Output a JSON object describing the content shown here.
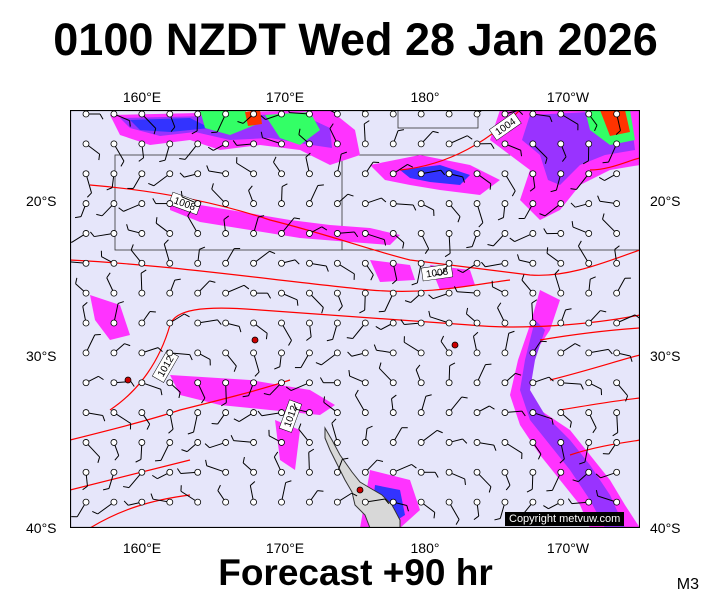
{
  "title": "0100 NZDT Wed 28 Jan 2026",
  "footer": "Forecast +90 hr",
  "model": "M3",
  "copyright": "Copyright metvuw.com",
  "lon_labels": [
    "160°E",
    "170°E",
    "180°",
    "170°W"
  ],
  "lat_labels": [
    "20°S",
    "30°S",
    "40°S"
  ],
  "isobar_labels": [
    "1004",
    "1008",
    "1008",
    "1012",
    "1012"
  ],
  "colors": {
    "background": "#e6e6fa",
    "isobar": "#ff0000",
    "rain_light": "#ff33ff",
    "rain_medium": "#9933ff",
    "rain_heavy": "#3333ff",
    "rain_extreme": "#33ff66",
    "land": "#d8d8d8"
  }
}
